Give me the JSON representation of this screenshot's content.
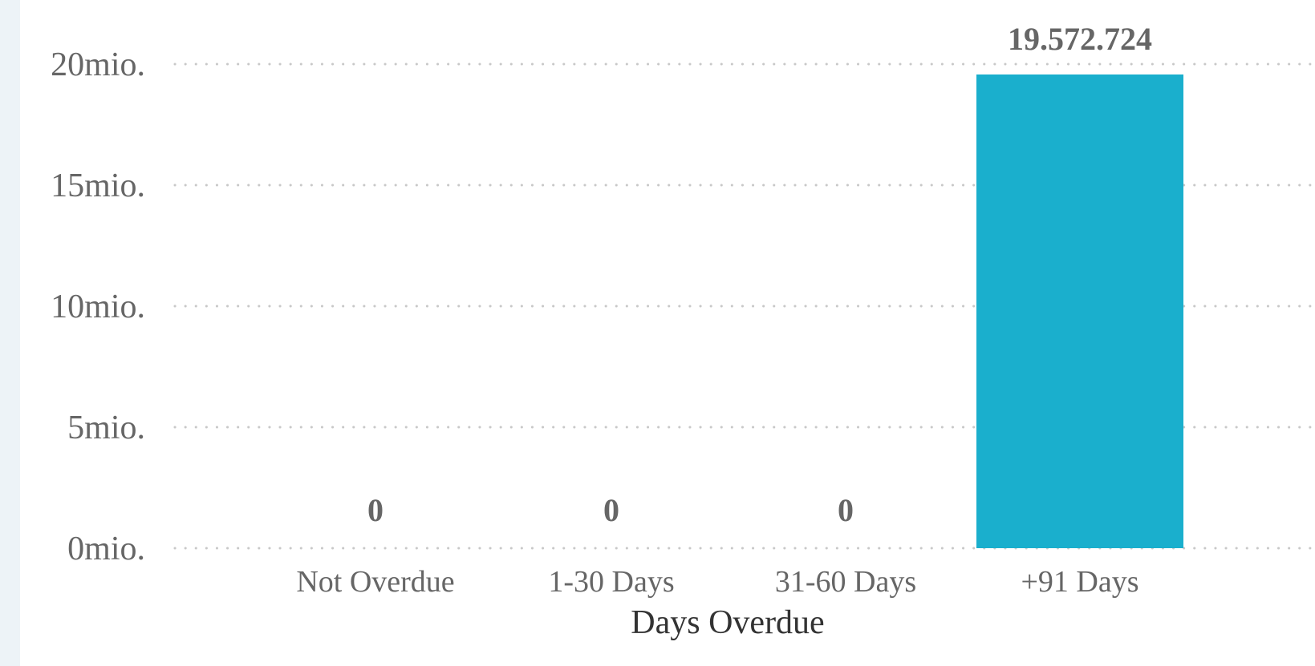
{
  "chart_data": {
    "type": "bar",
    "categories": [
      "Not Overdue",
      "1-30 Days",
      "31-60 Days",
      "+91 Days"
    ],
    "values": [
      0,
      0,
      0,
      19572724
    ],
    "data_labels": [
      "0",
      "0",
      "0",
      "19.572.724"
    ],
    "xlabel": "Days Overdue",
    "ylabel": "",
    "title": "",
    "ylim": [
      0,
      20000000
    ],
    "yticks": [
      {
        "value": 0,
        "label": "0mio."
      },
      {
        "value": 5000000,
        "label": "5mio."
      },
      {
        "value": 10000000,
        "label": "10mio."
      },
      {
        "value": 15000000,
        "label": "15mio."
      },
      {
        "value": 20000000,
        "label": "20mio."
      }
    ],
    "grid": true,
    "bar_color": "#1aafcd",
    "legend": "none"
  }
}
